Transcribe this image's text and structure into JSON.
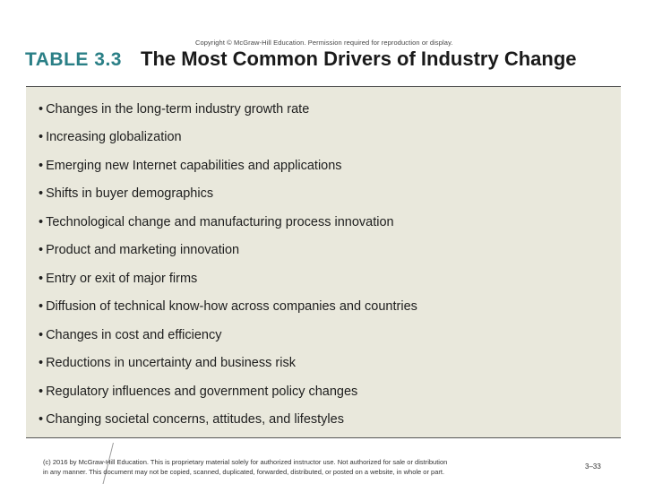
{
  "header": {
    "copyright": "Copyright © McGraw-Hill Education. Permission required for reproduction or display.",
    "table_label": "TABLE 3.3",
    "title": "The Most Common Drivers of Industry Change"
  },
  "drivers": [
    "Changes in the long-term industry growth rate",
    "Increasing globalization",
    "Emerging new Internet capabilities and applications",
    "Shifts in buyer demographics",
    "Technological change and manufacturing process innovation",
    "Product and marketing innovation",
    "Entry or exit of major firms",
    "Diffusion of technical know-how across companies and countries",
    "Changes in cost and efficiency",
    "Reductions in uncertainty and business risk",
    "Regulatory influences and government policy changes",
    "Changing societal concerns, attitudes, and lifestyles"
  ],
  "bullet_glyph": "•",
  "footer": {
    "line1": "(c) 2016 by McGraw-Hill Education. This is proprietary material solely for authorized instructor use. Not authorized for sale or distribution",
    "line2": "in any manner. This document may not be copied, scanned, duplicated, forwarded, distributed, or posted on a website, in whole or part.",
    "slide_number": "3–33"
  },
  "colors": {
    "label_teal": "#2a7f86",
    "panel_bg": "#e9e8dc"
  }
}
